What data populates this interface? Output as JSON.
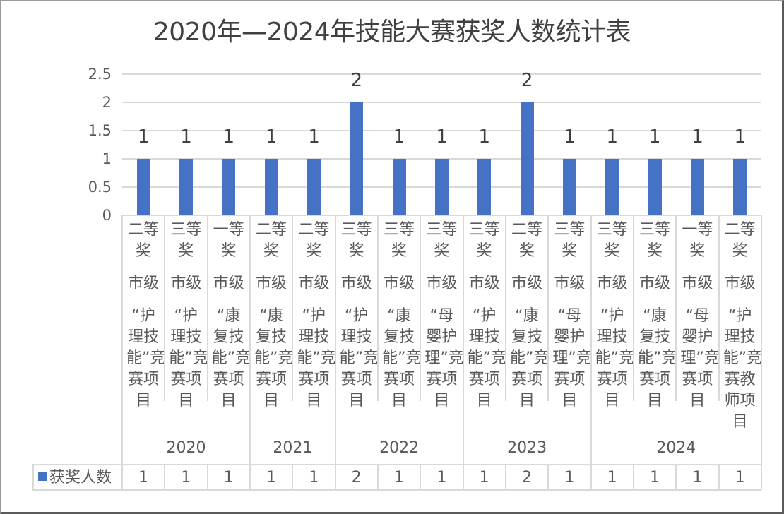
{
  "chart_data": {
    "type": "bar",
    "title": "2020年—2024年技能大赛获奖人数统计表",
    "xlabel": "",
    "ylabel": "",
    "ylim": [
      0,
      2.5
    ],
    "yticks": [
      "2.5",
      "2",
      "1.5",
      "1",
      "0.5",
      "0"
    ],
    "grid": true,
    "legend_position": "data-table",
    "categories": [
      {
        "year": "2020",
        "award": "二等奖",
        "level": "市级",
        "project": "“护理技能”竞赛项目"
      },
      {
        "year": "2020",
        "award": "三等奖",
        "level": "市级",
        "project": "“护理技能”竞赛项目"
      },
      {
        "year": "2020",
        "award": "一等奖",
        "level": "市级",
        "project": "“康复技能”竞赛项目"
      },
      {
        "year": "2021",
        "award": "二等奖",
        "level": "市级",
        "project": "“康复技能”竞赛项目"
      },
      {
        "year": "2021",
        "award": "二等奖",
        "level": "市级",
        "project": "“护理技能”竞赛项目"
      },
      {
        "year": "2022",
        "award": "三等奖",
        "level": "市级",
        "project": "“护理技能”竞赛项目"
      },
      {
        "year": "2022",
        "award": "三等奖",
        "level": "市级",
        "project": "“康复技能”竞赛项目"
      },
      {
        "year": "2022",
        "award": "三等奖",
        "level": "市级",
        "project": "“母婴护理”竞赛项目"
      },
      {
        "year": "2023",
        "award": "三等奖",
        "level": "市级",
        "project": "“护理技能”竞赛项目"
      },
      {
        "year": "2023",
        "award": "二等奖",
        "level": "市级",
        "project": "“康复技能”竞赛项目"
      },
      {
        "year": "2023",
        "award": "三等奖",
        "level": "市级",
        "project": "“母婴护理”竞赛项目"
      },
      {
        "year": "2024",
        "award": "三等奖",
        "level": "市级",
        "project": "“护理技能”竞赛项目"
      },
      {
        "year": "2024",
        "award": "三等奖",
        "level": "市级",
        "project": "“康复技能”竞赛项目"
      },
      {
        "year": "2024",
        "award": "一等奖",
        "level": "市级",
        "project": "“母婴护理”竞赛项目"
      },
      {
        "year": "2024",
        "award": "二等奖",
        "level": "市级",
        "project": "“护理技能”竞赛教师项目"
      }
    ],
    "year_groups": [
      {
        "label": "2020",
        "count": 3
      },
      {
        "label": "2021",
        "count": 2
      },
      {
        "label": "2022",
        "count": 3
      },
      {
        "label": "2023",
        "count": 3
      },
      {
        "label": "2024",
        "count": 4
      }
    ],
    "series": [
      {
        "name": "获奖人数",
        "color": "#4472c4",
        "values": [
          1,
          1,
          1,
          1,
          1,
          2,
          1,
          1,
          1,
          2,
          1,
          1,
          1,
          1,
          1
        ]
      }
    ]
  },
  "colors": {
    "bar": "#4472c4",
    "grid": "#d9d9d9",
    "text": "#404040"
  }
}
